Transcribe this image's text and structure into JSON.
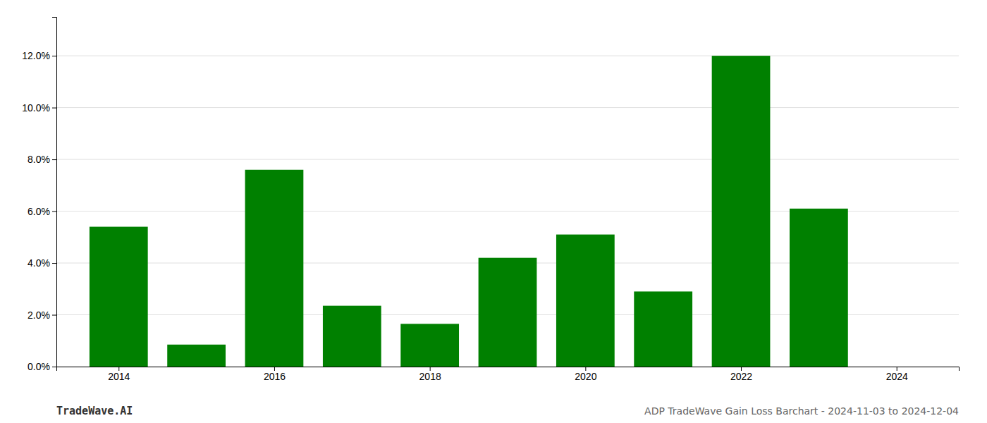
{
  "chart_data": {
    "type": "bar",
    "title": "ADP TradeWave Gain Loss Barchart - 2024-11-03 to 2024-12-04",
    "annotations": [
      "TradeWave.AI"
    ],
    "x": [
      2014,
      2015,
      2016,
      2017,
      2018,
      2019,
      2020,
      2021,
      2022,
      2023
    ],
    "values": [
      0.054,
      0.0085,
      0.076,
      0.0235,
      0.0165,
      0.042,
      0.051,
      0.029,
      0.12,
      0.061
    ],
    "color": "#008000",
    "xlim": [
      2013.2,
      2024.8
    ],
    "xticks": [
      2014,
      2016,
      2018,
      2020,
      2022,
      2024
    ],
    "ylim": [
      0,
      0.135
    ],
    "yticks": [
      {
        "value": 0.0,
        "label": "0.0%"
      },
      {
        "value": 0.02,
        "label": "2.0%"
      },
      {
        "value": 0.04,
        "label": "4.0%"
      },
      {
        "value": 0.06,
        "label": "6.0%"
      },
      {
        "value": 0.08,
        "label": "8.0%"
      },
      {
        "value": 0.1,
        "label": "10.0%"
      },
      {
        "value": 0.12,
        "label": "12.0%"
      }
    ],
    "grid": true
  }
}
